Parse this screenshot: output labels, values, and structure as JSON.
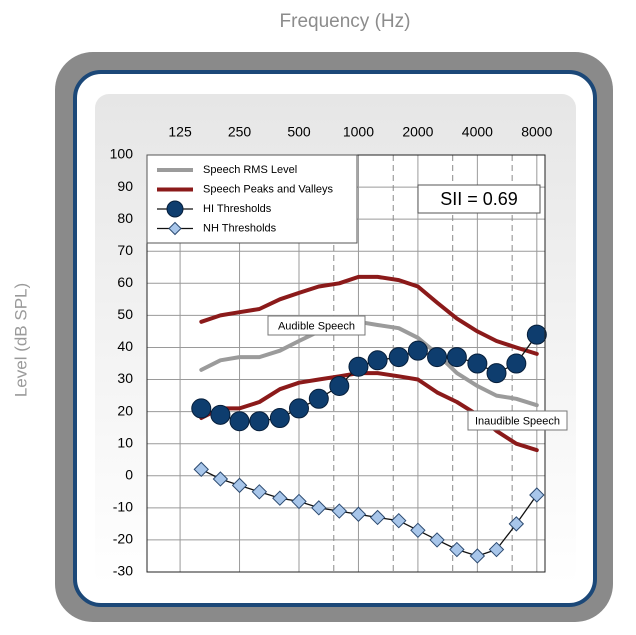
{
  "chart_data": {
    "type": "line",
    "title": "Frequency (Hz)",
    "ylabel": "Level (dB SPL)",
    "x": [
      160,
      200,
      250,
      315,
      400,
      500,
      630,
      800,
      1000,
      1250,
      1600,
      2000,
      2500,
      3150,
      4000,
      5000,
      6300,
      8000
    ],
    "xscale": "log",
    "xlim": [
      85,
      8800
    ],
    "xticks": [
      125,
      250,
      500,
      1000,
      2000,
      4000,
      8000
    ],
    "xgrid_minor": [
      750,
      1500,
      3000,
      6000
    ],
    "ylim": [
      -30,
      100
    ],
    "yticks": [
      -30,
      -20,
      -10,
      0,
      10,
      20,
      30,
      40,
      50,
      60,
      70,
      80,
      90,
      100
    ],
    "grid": true,
    "legend": "top-left",
    "series": [
      {
        "name": "Speech RMS Level",
        "color": "#9b9b9b",
        "marker": "none",
        "values": [
          33,
          36,
          37,
          37,
          39,
          42,
          45,
          47,
          48,
          47,
          46,
          43,
          38,
          32,
          28,
          25,
          24,
          22
        ]
      },
      {
        "name": "Speech Peaks and Valleys",
        "color": "#8b1a1a",
        "marker": "none",
        "values": [
          48,
          50,
          51,
          52,
          55,
          57,
          59,
          60,
          62,
          62,
          61,
          59,
          54,
          49,
          45,
          42,
          40,
          38
        ],
        "low_values": [
          18,
          21,
          21,
          23,
          27,
          29,
          30,
          31,
          32,
          32,
          31,
          30,
          26,
          23,
          19,
          14,
          10,
          8
        ]
      },
      {
        "name": "HI Thresholds",
        "color": "#0e3d6e",
        "marker": "circle",
        "values": [
          21,
          19,
          17,
          17,
          18,
          21,
          24,
          28,
          34,
          36,
          37,
          39,
          37,
          37,
          35,
          32,
          35,
          44
        ]
      },
      {
        "name": "NH Thresholds",
        "color": "#a8c6ea",
        "marker": "diamond",
        "values": [
          2,
          -1,
          -3,
          -5,
          -7,
          -8,
          -10,
          -11,
          -12,
          -13,
          -14,
          -17,
          -20,
          -23,
          -25,
          -23,
          -15,
          -6
        ]
      }
    ],
    "annotations": [
      {
        "text": "SII = 0.69"
      },
      {
        "text": "Audible Speech"
      },
      {
        "text": "Inaudible Speech"
      }
    ]
  }
}
